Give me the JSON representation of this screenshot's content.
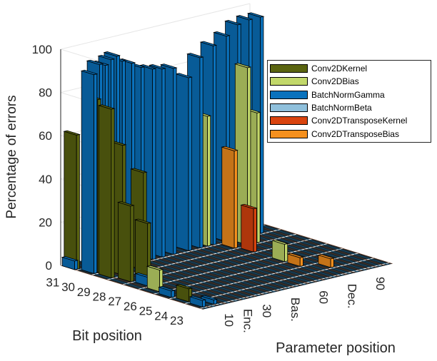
{
  "chart_data": {
    "type": "bar3d",
    "zlabel": "Percentage of errors",
    "xlabel": "Bit position",
    "ylabel": "Parameter position",
    "zlim": [
      0,
      100
    ],
    "zticks": [
      "0",
      "20",
      "40",
      "60",
      "80",
      "100"
    ],
    "bit_ticks": [
      "31",
      "30",
      "29",
      "28",
      "27",
      "26",
      "25",
      "24",
      "23"
    ],
    "param_ticks": [
      {
        "value": 10,
        "label": "10"
      },
      {
        "value": 20,
        "label": "Enc."
      },
      {
        "value": 30,
        "label": "30"
      },
      {
        "value": 45,
        "label": "Bas."
      },
      {
        "value": 60,
        "label": "60"
      },
      {
        "value": 75,
        "label": "Dec."
      },
      {
        "value": 90,
        "label": "90"
      }
    ],
    "grid": true,
    "legend_placement": "top-right",
    "series": [
      {
        "name": "Conv2DKernel",
        "color": "#5a6410"
      },
      {
        "name": "Conv2DBias",
        "color": "#c2d86a"
      },
      {
        "name": "BatchNormGamma",
        "color": "#0a72bd"
      },
      {
        "name": "BatchNormBeta",
        "color": "#8fc0dc"
      },
      {
        "name": "Conv2DTransposeKernel",
        "color": "#d9440f"
      },
      {
        "name": "Conv2DTransposeBias",
        "color": "#f5901e"
      }
    ],
    "bars": [
      {
        "bit": 31,
        "param": 1,
        "series": "Conv2DKernel",
        "value": 62
      },
      {
        "bit": 31,
        "param": 0,
        "series": "BatchNormGamma",
        "value": 4
      },
      {
        "bit": 30,
        "param": 2,
        "series": "BatchNormGamma",
        "value": 92
      },
      {
        "bit": 30,
        "param": 5,
        "series": "BatchNormGamma",
        "value": 96
      },
      {
        "bit": 30,
        "param": 8,
        "series": "BatchNormGamma",
        "value": 95
      },
      {
        "bit": 30,
        "param": 11,
        "series": "BatchNormGamma",
        "value": 97
      },
      {
        "bit": 30,
        "param": 14,
        "series": "BatchNormGamma",
        "value": 98
      },
      {
        "bit": 30,
        "param": 17,
        "series": "BatchNormGamma",
        "value": 95
      },
      {
        "bit": 30,
        "param": 22,
        "series": "BatchNormGamma",
        "value": 93
      },
      {
        "bit": 30,
        "param": 27,
        "series": "BatchNormGamma",
        "value": 90
      },
      {
        "bit": 30,
        "param": 33,
        "series": "BatchNormGamma",
        "value": 88
      },
      {
        "bit": 30,
        "param": 38,
        "series": "BatchNormGamma",
        "value": 87
      },
      {
        "bit": 30,
        "param": 44,
        "series": "BatchNormGamma",
        "value": 86
      },
      {
        "bit": 30,
        "param": 52,
        "series": "BatchNormGamma",
        "value": 80
      },
      {
        "bit": 30,
        "param": 58,
        "series": "BatchNormGamma",
        "value": 88
      },
      {
        "bit": 30,
        "param": 65,
        "series": "BatchNormGamma",
        "value": 92
      },
      {
        "bit": 30,
        "param": 72,
        "series": "BatchNormGamma",
        "value": 95
      },
      {
        "bit": 30,
        "param": 78,
        "series": "BatchNormGamma",
        "value": 99
      },
      {
        "bit": 30,
        "param": 84,
        "series": "BatchNormGamma",
        "value": 100
      },
      {
        "bit": 30,
        "param": 90,
        "series": "BatchNormGamma",
        "value": 100
      },
      {
        "bit": 30,
        "param": 4,
        "series": "Conv2DKernel",
        "value": 80
      },
      {
        "bit": 30,
        "param": 62,
        "series": "Conv2DBias",
        "value": 60
      },
      {
        "bit": 29,
        "param": 3,
        "series": "Conv2DKernel",
        "value": 78
      },
      {
        "bit": 29,
        "param": 9,
        "series": "Conv2DKernel",
        "value": 60
      },
      {
        "bit": 29,
        "param": 20,
        "series": "Conv2DKernel",
        "value": 45
      },
      {
        "bit": 29,
        "param": 68,
        "series": "Conv2DTransposeBias",
        "value": 45
      },
      {
        "bit": 29,
        "param": 75,
        "series": "Conv2DBias",
        "value": 82
      },
      {
        "bit": 29,
        "param": 80,
        "series": "Conv2DBias",
        "value": 60
      },
      {
        "bit": 28,
        "param": 5,
        "series": "Conv2DKernel",
        "value": 35
      },
      {
        "bit": 28,
        "param": 14,
        "series": "Conv2DKernel",
        "value": 25
      },
      {
        "bit": 28,
        "param": 70,
        "series": "Conv2DTransposeKernel",
        "value": 20
      },
      {
        "bit": 27,
        "param": 6,
        "series": "BatchNormGamma",
        "value": 4
      },
      {
        "bit": 26,
        "param": 4,
        "series": "Conv2DBias",
        "value": 10
      },
      {
        "bit": 26,
        "param": 70,
        "series": "Conv2DBias",
        "value": 8
      },
      {
        "bit": 25,
        "param": 70,
        "series": "Conv2DTransposeBias",
        "value": 4
      },
      {
        "bit": 25,
        "param": 2,
        "series": "BatchNormGamma",
        "value": 3
      },
      {
        "bit": 24,
        "param": 3,
        "series": "Conv2DKernel",
        "value": 6
      },
      {
        "bit": 24,
        "param": 78,
        "series": "Conv2DTransposeBias",
        "value": 4
      },
      {
        "bit": 23,
        "param": 2,
        "series": "BatchNormGamma",
        "value": 3
      },
      {
        "bit": 23,
        "param": 8,
        "series": "BatchNormGamma",
        "value": 2
      }
    ]
  }
}
